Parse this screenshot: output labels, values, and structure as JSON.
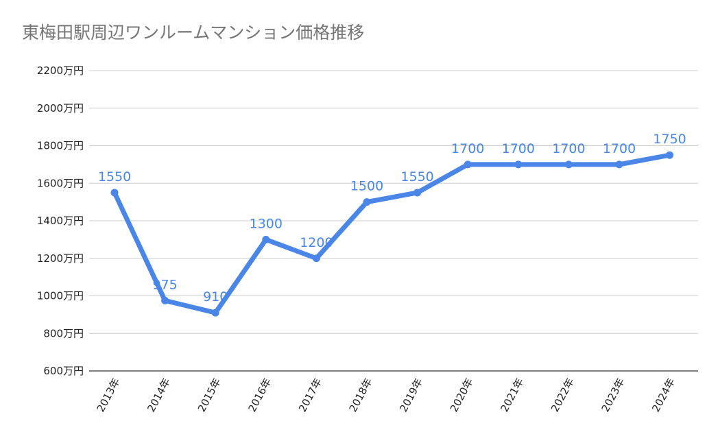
{
  "chart_data": {
    "type": "line",
    "title": "東梅田駅周辺ワンルームマンション価格推移",
    "xlabel": "",
    "ylabel": "",
    "categories": [
      "2013年",
      "2014年",
      "2015年",
      "2016年",
      "2017年",
      "2018年",
      "2019年",
      "2020年",
      "2021年",
      "2022年",
      "2023年",
      "2024年"
    ],
    "series": [
      {
        "name": "価格",
        "values": [
          1550,
          975,
          910,
          1300,
          1200,
          1500,
          1550,
          1700,
          1700,
          1700,
          1700,
          1750
        ]
      }
    ],
    "ylim": [
      600,
      2200
    ],
    "yticks": [
      600,
      800,
      1000,
      1200,
      1400,
      1600,
      1800,
      2000,
      2200
    ],
    "ytick_suffix": "万円",
    "grid": true,
    "legend": "none",
    "data_labels": true
  },
  "colors": {
    "series": "#4a86e8",
    "grid": "#cccccc",
    "title": "#757575",
    "axis_text": "#222222"
  }
}
